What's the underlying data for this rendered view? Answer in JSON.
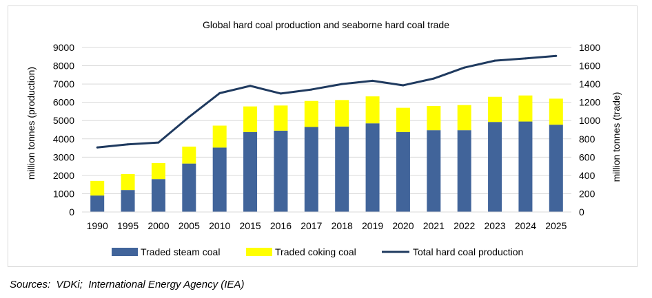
{
  "source": "Sources:  VDKi;  International Energy Agency (IEA)",
  "colors": {
    "steam": "#41649a",
    "coking": "#ffff00",
    "line": "#1f3a5f",
    "grid": "#d9d9d9"
  },
  "chart_data": {
    "type": "bar",
    "title": "Global hard coal production and seaborne hard coal trade",
    "ylabel": "million tonnes (production)",
    "y2label": "million tonnes (trade)",
    "ylim": [
      0,
      9000
    ],
    "y2lim": [
      0,
      1800
    ],
    "yticks": [
      "0",
      "1000",
      "2000",
      "3000",
      "4000",
      "5000",
      "6000",
      "7000",
      "8000",
      "9000"
    ],
    "y2ticks": [
      "0",
      "200",
      "400",
      "600",
      "800",
      "1000",
      "1200",
      "1400",
      "1600",
      "1800"
    ],
    "stacked": true,
    "grid": true,
    "legend": "bottom",
    "categories": [
      "1990",
      "1995",
      "2000",
      "2005",
      "2010",
      "2015",
      "2016",
      "2017",
      "2018",
      "2019",
      "2020",
      "2021",
      "2022",
      "2023",
      "2024",
      "2025"
    ],
    "series": [
      {
        "name": "Traded steam coal",
        "type": "bar",
        "axis": "right",
        "values": [
          180,
          240,
          360,
          530,
          705,
          875,
          890,
          930,
          935,
          970,
          875,
          895,
          895,
          985,
          990,
          955
        ]
      },
      {
        "name": "Traded coking coal",
        "type": "bar",
        "axis": "right",
        "values": [
          160,
          175,
          175,
          185,
          240,
          280,
          275,
          285,
          290,
          295,
          265,
          265,
          275,
          275,
          285,
          285
        ]
      },
      {
        "name": "Total hard coal production",
        "type": "line",
        "axis": "left",
        "values": [
          3530,
          3700,
          3800,
          5200,
          6500,
          6900,
          6480,
          6700,
          7000,
          7180,
          6930,
          7300,
          7900,
          8280,
          8400,
          8540
        ]
      }
    ]
  }
}
